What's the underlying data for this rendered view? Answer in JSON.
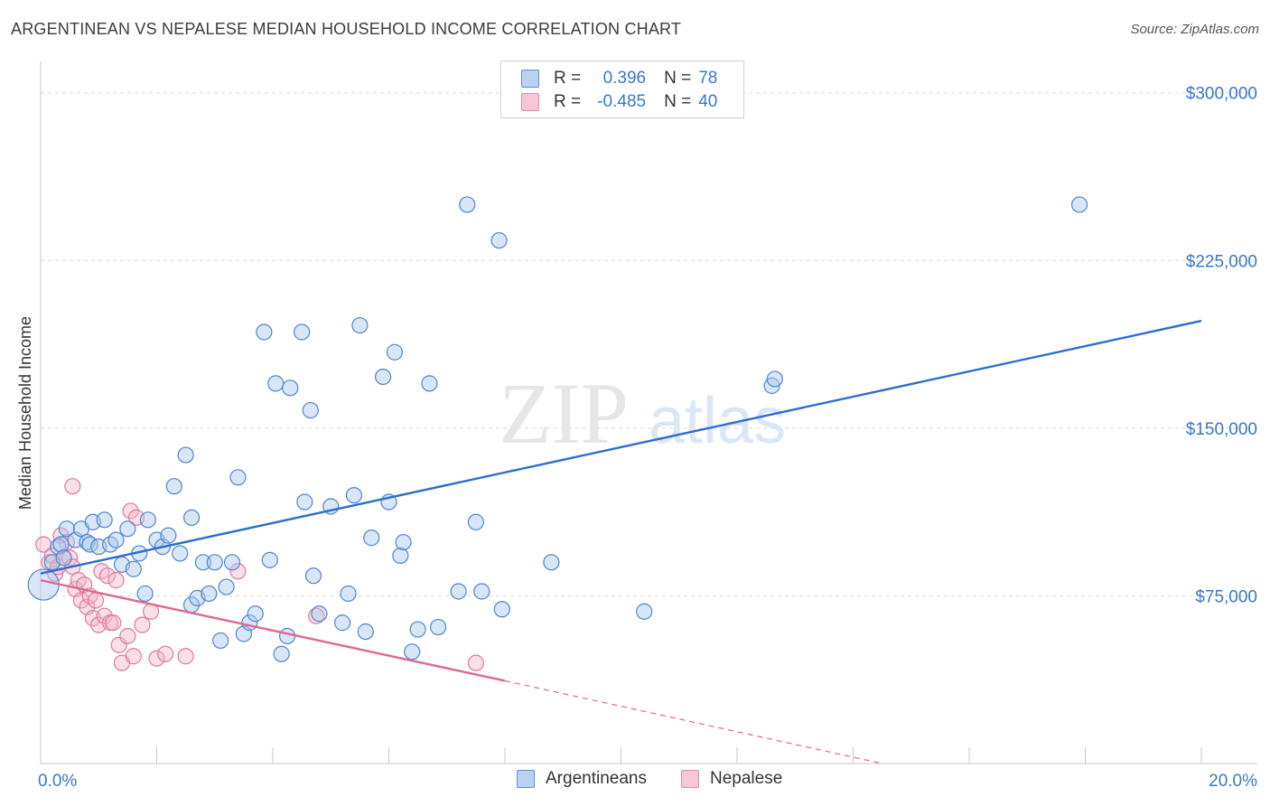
{
  "title": "ARGENTINEAN VS NEPALESE MEDIAN HOUSEHOLD INCOME CORRELATION CHART",
  "source": "Source: ZipAtlas.com",
  "watermark": {
    "zip": "ZIP",
    "atlas": "atlas"
  },
  "legend": {
    "rows": [
      {
        "r_label": "R =",
        "r_value": "0.396",
        "n_label": "N =",
        "n_value": "78"
      },
      {
        "r_label": "R =",
        "r_value": "-0.485",
        "n_label": "N =",
        "n_value": "40"
      }
    ]
  },
  "colors": {
    "blue_fill": "#a9c8f0",
    "blue_stroke": "#4f86cf",
    "blue_line": "#2a6fcc",
    "pink_fill": "#f5b8cc",
    "pink_stroke": "#e07a9c",
    "pink_line": "#e06892",
    "grid": "#d9d9d9",
    "axis_text": "#3a78c9"
  },
  "chart_data": {
    "type": "scatter",
    "title": "ARGENTINEAN VS NEPALESE MEDIAN HOUSEHOLD INCOME CORRELATION CHART",
    "xlabel": "",
    "ylabel": "Median Household Income",
    "xlim": [
      0,
      20
    ],
    "ylim": [
      0,
      310000
    ],
    "x_tick_labels": [
      "0.0%",
      "20.0%"
    ],
    "y_ticks": [
      75000,
      150000,
      225000,
      300000
    ],
    "y_tick_labels": [
      "$75,000",
      "$150,000",
      "$225,000",
      "$300,000"
    ],
    "series": [
      {
        "name": "Argentineans",
        "r": 0.396,
        "n": 78,
        "trend": {
          "x": [
            0,
            20
          ],
          "y": [
            85000,
            198000
          ]
        },
        "points": [
          [
            0.05,
            80000
          ],
          [
            0.2,
            90000
          ],
          [
            0.3,
            97000
          ],
          [
            0.35,
            98000
          ],
          [
            0.4,
            92000
          ],
          [
            0.45,
            105000
          ],
          [
            0.6,
            100000
          ],
          [
            0.7,
            105000
          ],
          [
            0.8,
            99000
          ],
          [
            0.85,
            98000
          ],
          [
            0.9,
            108000
          ],
          [
            1.0,
            97000
          ],
          [
            1.1,
            109000
          ],
          [
            1.2,
            98000
          ],
          [
            1.3,
            100000
          ],
          [
            1.4,
            89000
          ],
          [
            1.5,
            105000
          ],
          [
            1.6,
            87000
          ],
          [
            1.7,
            94000
          ],
          [
            1.8,
            76000
          ],
          [
            1.85,
            109000
          ],
          [
            2.0,
            100000
          ],
          [
            2.1,
            97000
          ],
          [
            2.2,
            102000
          ],
          [
            2.3,
            124000
          ],
          [
            2.4,
            94000
          ],
          [
            2.5,
            138000
          ],
          [
            2.6,
            71000
          ],
          [
            2.6,
            110000
          ],
          [
            2.7,
            74000
          ],
          [
            2.8,
            90000
          ],
          [
            2.9,
            76000
          ],
          [
            3.0,
            90000
          ],
          [
            3.1,
            55000
          ],
          [
            3.2,
            79000
          ],
          [
            3.3,
            90000
          ],
          [
            3.4,
            128000
          ],
          [
            3.5,
            58000
          ],
          [
            3.6,
            63000
          ],
          [
            3.7,
            67000
          ],
          [
            3.85,
            193000
          ],
          [
            3.95,
            91000
          ],
          [
            4.05,
            170000
          ],
          [
            4.15,
            49000
          ],
          [
            4.25,
            57000
          ],
          [
            4.3,
            168000
          ],
          [
            4.5,
            193000
          ],
          [
            4.55,
            117000
          ],
          [
            4.65,
            158000
          ],
          [
            4.7,
            84000
          ],
          [
            4.8,
            67000
          ],
          [
            5.0,
            115000
          ],
          [
            5.2,
            63000
          ],
          [
            5.3,
            76000
          ],
          [
            5.4,
            120000
          ],
          [
            5.5,
            196000
          ],
          [
            5.6,
            59000
          ],
          [
            5.7,
            101000
          ],
          [
            5.9,
            173000
          ],
          [
            6.0,
            117000
          ],
          [
            6.1,
            184000
          ],
          [
            6.2,
            93000
          ],
          [
            6.25,
            99000
          ],
          [
            6.4,
            50000
          ],
          [
            6.5,
            60000
          ],
          [
            6.7,
            170000
          ],
          [
            6.85,
            61000
          ],
          [
            7.2,
            77000
          ],
          [
            7.35,
            250000
          ],
          [
            7.5,
            108000
          ],
          [
            7.6,
            77000
          ],
          [
            7.9,
            234000
          ],
          [
            7.95,
            69000
          ],
          [
            8.8,
            90000
          ],
          [
            10.4,
            68000
          ],
          [
            12.6,
            169000
          ],
          [
            12.65,
            172000
          ],
          [
            17.9,
            250000
          ]
        ]
      },
      {
        "name": "Nepalese",
        "r": -0.485,
        "n": 40,
        "trend": {
          "x": [
            0,
            8.0
          ],
          "y": [
            82000,
            37000
          ]
        },
        "trend_dashed": {
          "x": [
            8.0,
            14.5
          ],
          "y": [
            37000,
            0
          ]
        },
        "points": [
          [
            0.05,
            98000
          ],
          [
            0.15,
            90000
          ],
          [
            0.2,
            93000
          ],
          [
            0.25,
            85000
          ],
          [
            0.3,
            88000
          ],
          [
            0.35,
            102000
          ],
          [
            0.4,
            92000
          ],
          [
            0.45,
            99000
          ],
          [
            0.5,
            92000
          ],
          [
            0.55,
            88000
          ],
          [
            0.6,
            78000
          ],
          [
            0.65,
            82000
          ],
          [
            0.7,
            73000
          ],
          [
            0.75,
            80000
          ],
          [
            0.8,
            70000
          ],
          [
            0.85,
            75000
          ],
          [
            0.9,
            65000
          ],
          [
            0.95,
            73000
          ],
          [
            1.0,
            62000
          ],
          [
            1.05,
            86000
          ],
          [
            1.1,
            66000
          ],
          [
            1.15,
            84000
          ],
          [
            1.2,
            63000
          ],
          [
            1.25,
            63000
          ],
          [
            1.3,
            82000
          ],
          [
            1.35,
            53000
          ],
          [
            1.4,
            45000
          ],
          [
            1.5,
            57000
          ],
          [
            1.55,
            113000
          ],
          [
            1.6,
            48000
          ],
          [
            1.65,
            110000
          ],
          [
            1.75,
            62000
          ],
          [
            0.55,
            124000
          ],
          [
            1.9,
            68000
          ],
          [
            2.0,
            47000
          ],
          [
            2.15,
            49000
          ],
          [
            2.5,
            48000
          ],
          [
            3.4,
            86000
          ],
          [
            4.75,
            66000
          ],
          [
            7.5,
            45000
          ]
        ]
      }
    ]
  },
  "bottom_legend": {
    "argentineans": "Argentineans",
    "nepalese": "Nepalese"
  }
}
